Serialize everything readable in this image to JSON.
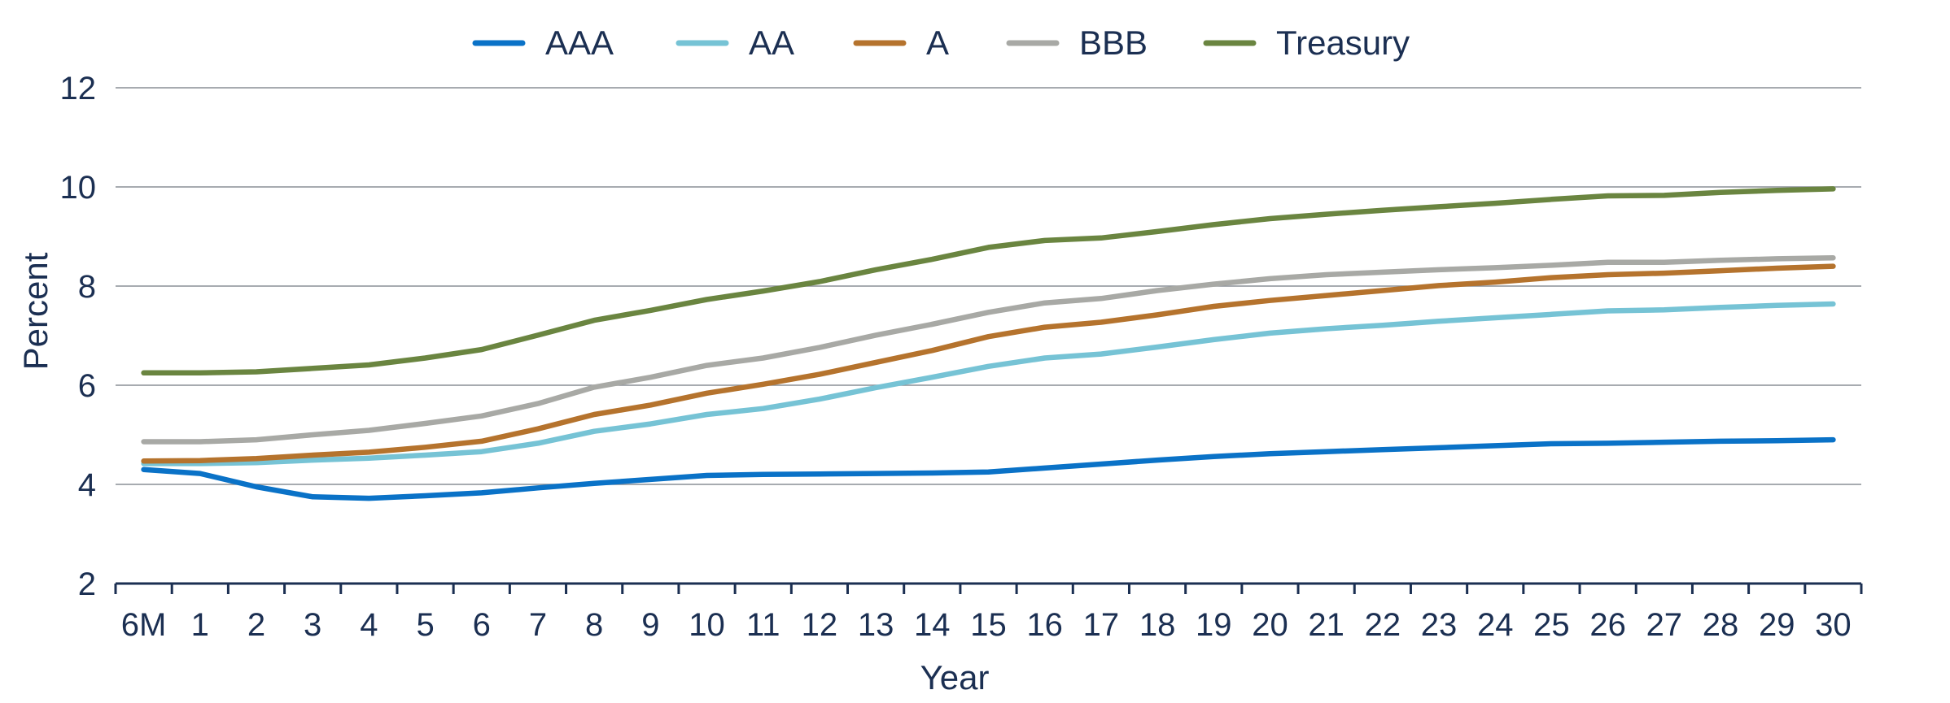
{
  "chart_data": {
    "type": "line",
    "xlabel": "Year",
    "ylabel": "Percent",
    "categories": [
      "6M",
      "1",
      "2",
      "3",
      "4",
      "5",
      "6",
      "7",
      "8",
      "9",
      "10",
      "11",
      "12",
      "13",
      "14",
      "15",
      "16",
      "17",
      "18",
      "19",
      "20",
      "21",
      "22",
      "23",
      "24",
      "25",
      "26",
      "27",
      "28",
      "29",
      "30"
    ],
    "ylim": [
      2,
      12
    ],
    "yticks": [
      2,
      4,
      6,
      8,
      10,
      12
    ],
    "grid": true,
    "legend_position": "top",
    "series": [
      {
        "name": "AAA",
        "color": "#0a72c7",
        "values": [
          4.3,
          4.22,
          3.95,
          3.75,
          3.72,
          3.77,
          3.83,
          3.93,
          4.02,
          4.1,
          4.18,
          4.2,
          4.21,
          4.22,
          4.23,
          4.25,
          4.33,
          4.41,
          4.49,
          4.56,
          4.62,
          4.66,
          4.7,
          4.74,
          4.78,
          4.82,
          4.83,
          4.85,
          4.87,
          4.88,
          4.9
        ]
      },
      {
        "name": "AA",
        "color": "#76c3d5",
        "values": [
          4.42,
          4.42,
          4.44,
          4.49,
          4.53,
          4.59,
          4.66,
          4.83,
          5.07,
          5.22,
          5.41,
          5.53,
          5.72,
          5.95,
          6.16,
          6.38,
          6.55,
          6.63,
          6.77,
          6.92,
          7.05,
          7.14,
          7.21,
          7.29,
          7.36,
          7.43,
          7.5,
          7.52,
          7.57,
          7.61,
          7.64
        ]
      },
      {
        "name": "A",
        "color": "#b5732d",
        "values": [
          4.47,
          4.48,
          4.52,
          4.59,
          4.65,
          4.75,
          4.87,
          5.12,
          5.41,
          5.6,
          5.84,
          6.02,
          6.22,
          6.46,
          6.7,
          6.98,
          7.17,
          7.27,
          7.42,
          7.59,
          7.71,
          7.81,
          7.91,
          8.01,
          8.08,
          8.17,
          8.23,
          8.26,
          8.31,
          8.36,
          8.4
        ]
      },
      {
        "name": "BBB",
        "color": "#a8a9a5",
        "values": [
          4.86,
          4.86,
          4.9,
          5.0,
          5.09,
          5.23,
          5.38,
          5.63,
          5.96,
          6.16,
          6.4,
          6.55,
          6.76,
          7.01,
          7.23,
          7.47,
          7.66,
          7.75,
          7.91,
          8.04,
          8.15,
          8.23,
          8.28,
          8.33,
          8.37,
          8.42,
          8.48,
          8.48,
          8.52,
          8.55,
          8.57
        ]
      },
      {
        "name": "Treasury",
        "color": "#6a8540",
        "values": [
          6.25,
          6.25,
          6.27,
          6.34,
          6.41,
          6.55,
          6.72,
          7.01,
          7.31,
          7.51,
          7.73,
          7.9,
          8.09,
          8.33,
          8.54,
          8.78,
          8.92,
          8.97,
          9.1,
          9.24,
          9.36,
          9.45,
          9.53,
          9.6,
          9.67,
          9.75,
          9.82,
          9.83,
          9.89,
          9.93,
          9.96
        ]
      }
    ]
  }
}
